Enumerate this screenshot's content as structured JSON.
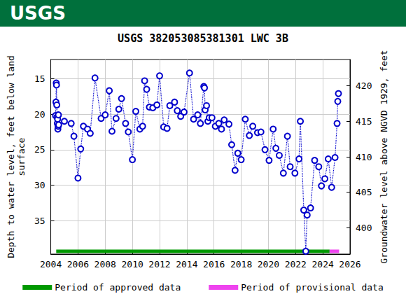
{
  "chart_data": {
    "type": "line",
    "logo": "USGS",
    "title": "USGS 382053085381301 LWC 3B",
    "ylabel": "Depth to water level, feet below land\nsurface",
    "y2label": "Groundwater level above NGVD 1929, feet",
    "xlim": [
      2004,
      2026
    ],
    "xticks": [
      2004,
      2006,
      2008,
      2010,
      2012,
      2014,
      2016,
      2018,
      2020,
      2022,
      2024,
      2026
    ],
    "ylim": [
      39.7,
      12.3
    ],
    "yticks": [
      15,
      20,
      25,
      30,
      35
    ],
    "y2lim": [
      396.3,
      423.7
    ],
    "y2ticks": [
      400,
      405,
      410,
      415,
      420
    ],
    "grid": true,
    "legend": "bottom",
    "series": [
      {
        "color": "#0000cc",
        "marker": "circle_open",
        "line_style": "dotted",
        "x": [
          2004.35,
          2004.38,
          2004.4,
          2004.42,
          2004.44,
          2004.46,
          2004.48,
          2004.5,
          2004.52,
          2004.54,
          2004.56,
          2004.58,
          2005.0,
          2005.5,
          2005.7,
          2006.0,
          2006.2,
          2006.4,
          2006.7,
          2006.9,
          2007.25,
          2007.7,
          2008.0,
          2008.3,
          2008.5,
          2008.8,
          2009.0,
          2009.2,
          2009.5,
          2009.7,
          2010.0,
          2010.25,
          2010.55,
          2010.75,
          2010.9,
          2011.05,
          2011.25,
          2011.5,
          2011.8,
          2012.0,
          2012.3,
          2012.55,
          2012.75,
          2013.1,
          2013.3,
          2013.55,
          2013.8,
          2014.2,
          2014.5,
          2014.8,
          2015.0,
          2015.25,
          2015.3,
          2015.35,
          2015.45,
          2015.55,
          2015.65,
          2015.85,
          2016.1,
          2016.35,
          2016.55,
          2016.75,
          2017.1,
          2017.3,
          2017.55,
          2017.75,
          2018.0,
          2018.3,
          2018.6,
          2018.85,
          2019.2,
          2019.45,
          2019.75,
          2020.05,
          2020.35,
          2020.55,
          2020.8,
          2021.1,
          2021.4,
          2021.6,
          2021.95,
          2022.25,
          2022.35,
          2022.6,
          2022.75,
          2022.85,
          2023.1,
          2023.4,
          2023.7,
          2023.9,
          2024.15,
          2024.4,
          2024.65,
          2024.9,
          2025.05,
          2025.1,
          2025.15
        ],
        "values": [
          20.2,
          18.3,
          15.6,
          15.9,
          18.7,
          20.4,
          21.3,
          20.7,
          22.1,
          21.7,
          20.1,
          21.5,
          21.0,
          21.3,
          23.1,
          29.0,
          24.9,
          21.7,
          22.1,
          22.7,
          14.9,
          20.6,
          20.1,
          16.7,
          22.4,
          20.6,
          19.3,
          17.8,
          21.3,
          22.5,
          26.4,
          19.6,
          22.1,
          21.7,
          15.3,
          16.5,
          19.0,
          19.1,
          18.7,
          14.6,
          21.8,
          22.0,
          18.8,
          18.3,
          19.5,
          20.3,
          19.7,
          14.2,
          20.7,
          20.1,
          21.3,
          16.1,
          16.3,
          19.4,
          18.8,
          21.0,
          20.5,
          20.5,
          21.7,
          21.3,
          22.1,
          20.8,
          21.4,
          24.3,
          27.9,
          25.5,
          26.4,
          20.7,
          23.0,
          21.7,
          22.6,
          22.5,
          25.0,
          26.5,
          22.1,
          24.8,
          25.8,
          28.3,
          23.1,
          27.4,
          28.3,
          26.3,
          21.0,
          33.5,
          39.3,
          34.2,
          33.2,
          26.5,
          27.4,
          30.1,
          29.1,
          26.3,
          30.3,
          26.1,
          21.3,
          18.2,
          17.1
        ]
      },
      {
        "name": "Period of approved data",
        "color": "#009900",
        "line_style": "solid",
        "x": [
          2004.4,
          2024.5
        ],
        "values": [
          39.3,
          39.3
        ]
      },
      {
        "name": "Period of provisional data",
        "color": "#ee44ee",
        "line_style": "solid",
        "x": [
          2024.5,
          2025.2
        ],
        "values": [
          39.3,
          39.3
        ]
      }
    ]
  }
}
